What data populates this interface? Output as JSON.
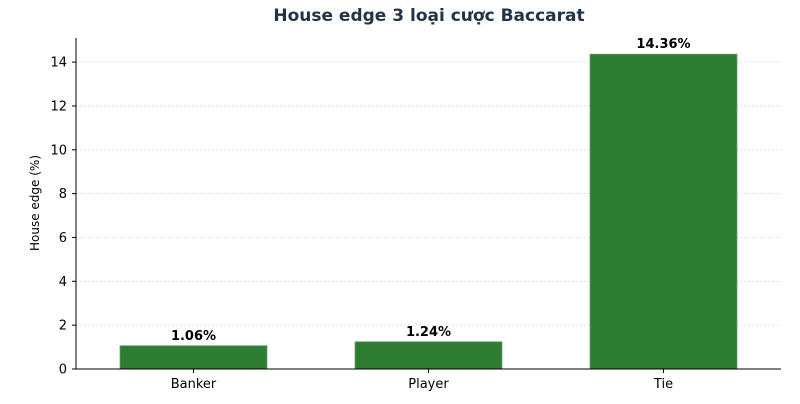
{
  "chart_data": {
    "type": "bar",
    "title": "House edge 3 loại cược Baccarat",
    "xlabel": "",
    "ylabel": "House edge (%)",
    "categories": [
      "Banker",
      "Player",
      "Tie"
    ],
    "values": [
      1.06,
      1.24,
      14.36
    ],
    "value_labels": [
      "1.06%",
      "1.24%",
      "14.36%"
    ],
    "ylim": [
      0,
      15.1
    ],
    "yticks": [
      0,
      2,
      4,
      6,
      8,
      10,
      12,
      14
    ],
    "grid": true,
    "legend": "none",
    "colors": {
      "bar": "#2e7d32",
      "bar_edge": "#5a9a5d",
      "title": "#243447",
      "grid": "#d9d9d9"
    }
  }
}
